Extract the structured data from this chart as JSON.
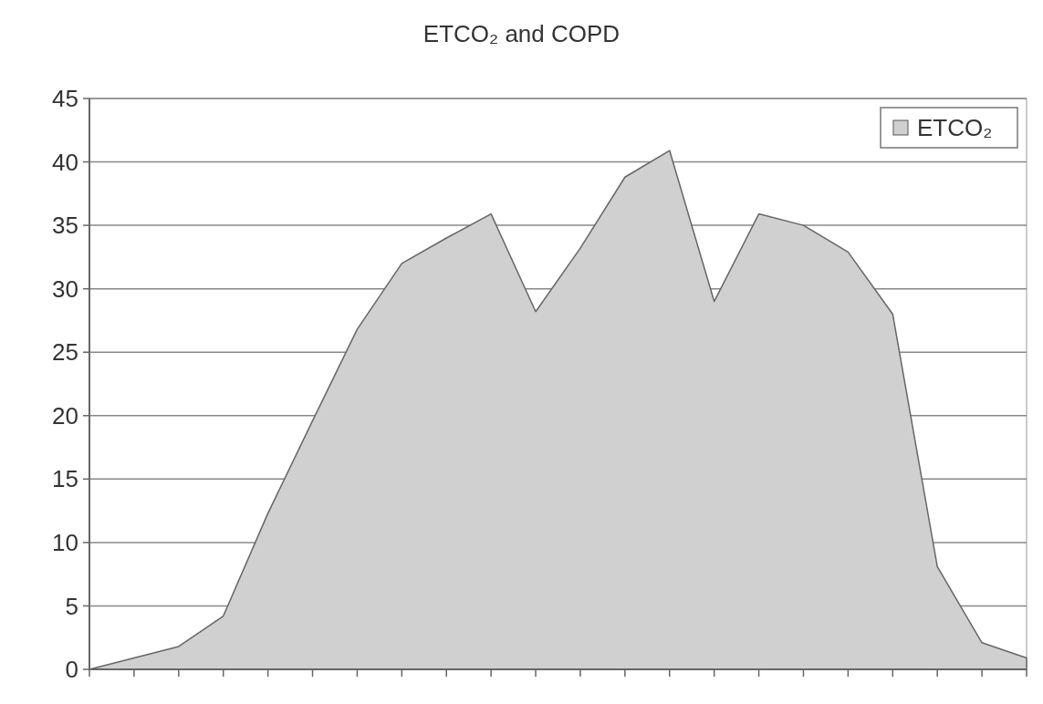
{
  "chart_data": {
    "type": "area",
    "title": "ETCO₂ and COPD",
    "categories": [
      null,
      null,
      null,
      null,
      null,
      null,
      null,
      null,
      null,
      null,
      null,
      null,
      null,
      null,
      null,
      null,
      null,
      null,
      null,
      null,
      null,
      null
    ],
    "series": [
      {
        "name": "ETCO₂",
        "color": "#d0d0d0",
        "values": [
          0,
          0.9,
          1.8,
          4.2,
          12.3,
          19.6,
          26.8,
          32,
          34,
          35.9,
          28.2,
          33.2,
          38.8,
          40.9,
          29,
          35.9,
          35,
          32.9,
          28,
          8.1,
          2.1,
          0.9
        ]
      }
    ],
    "ylim": [
      0,
      45
    ],
    "yticks": [
      0,
      5,
      10,
      15,
      20,
      25,
      30,
      35,
      40,
      45
    ],
    "grid": "y",
    "legend": "top right"
  }
}
